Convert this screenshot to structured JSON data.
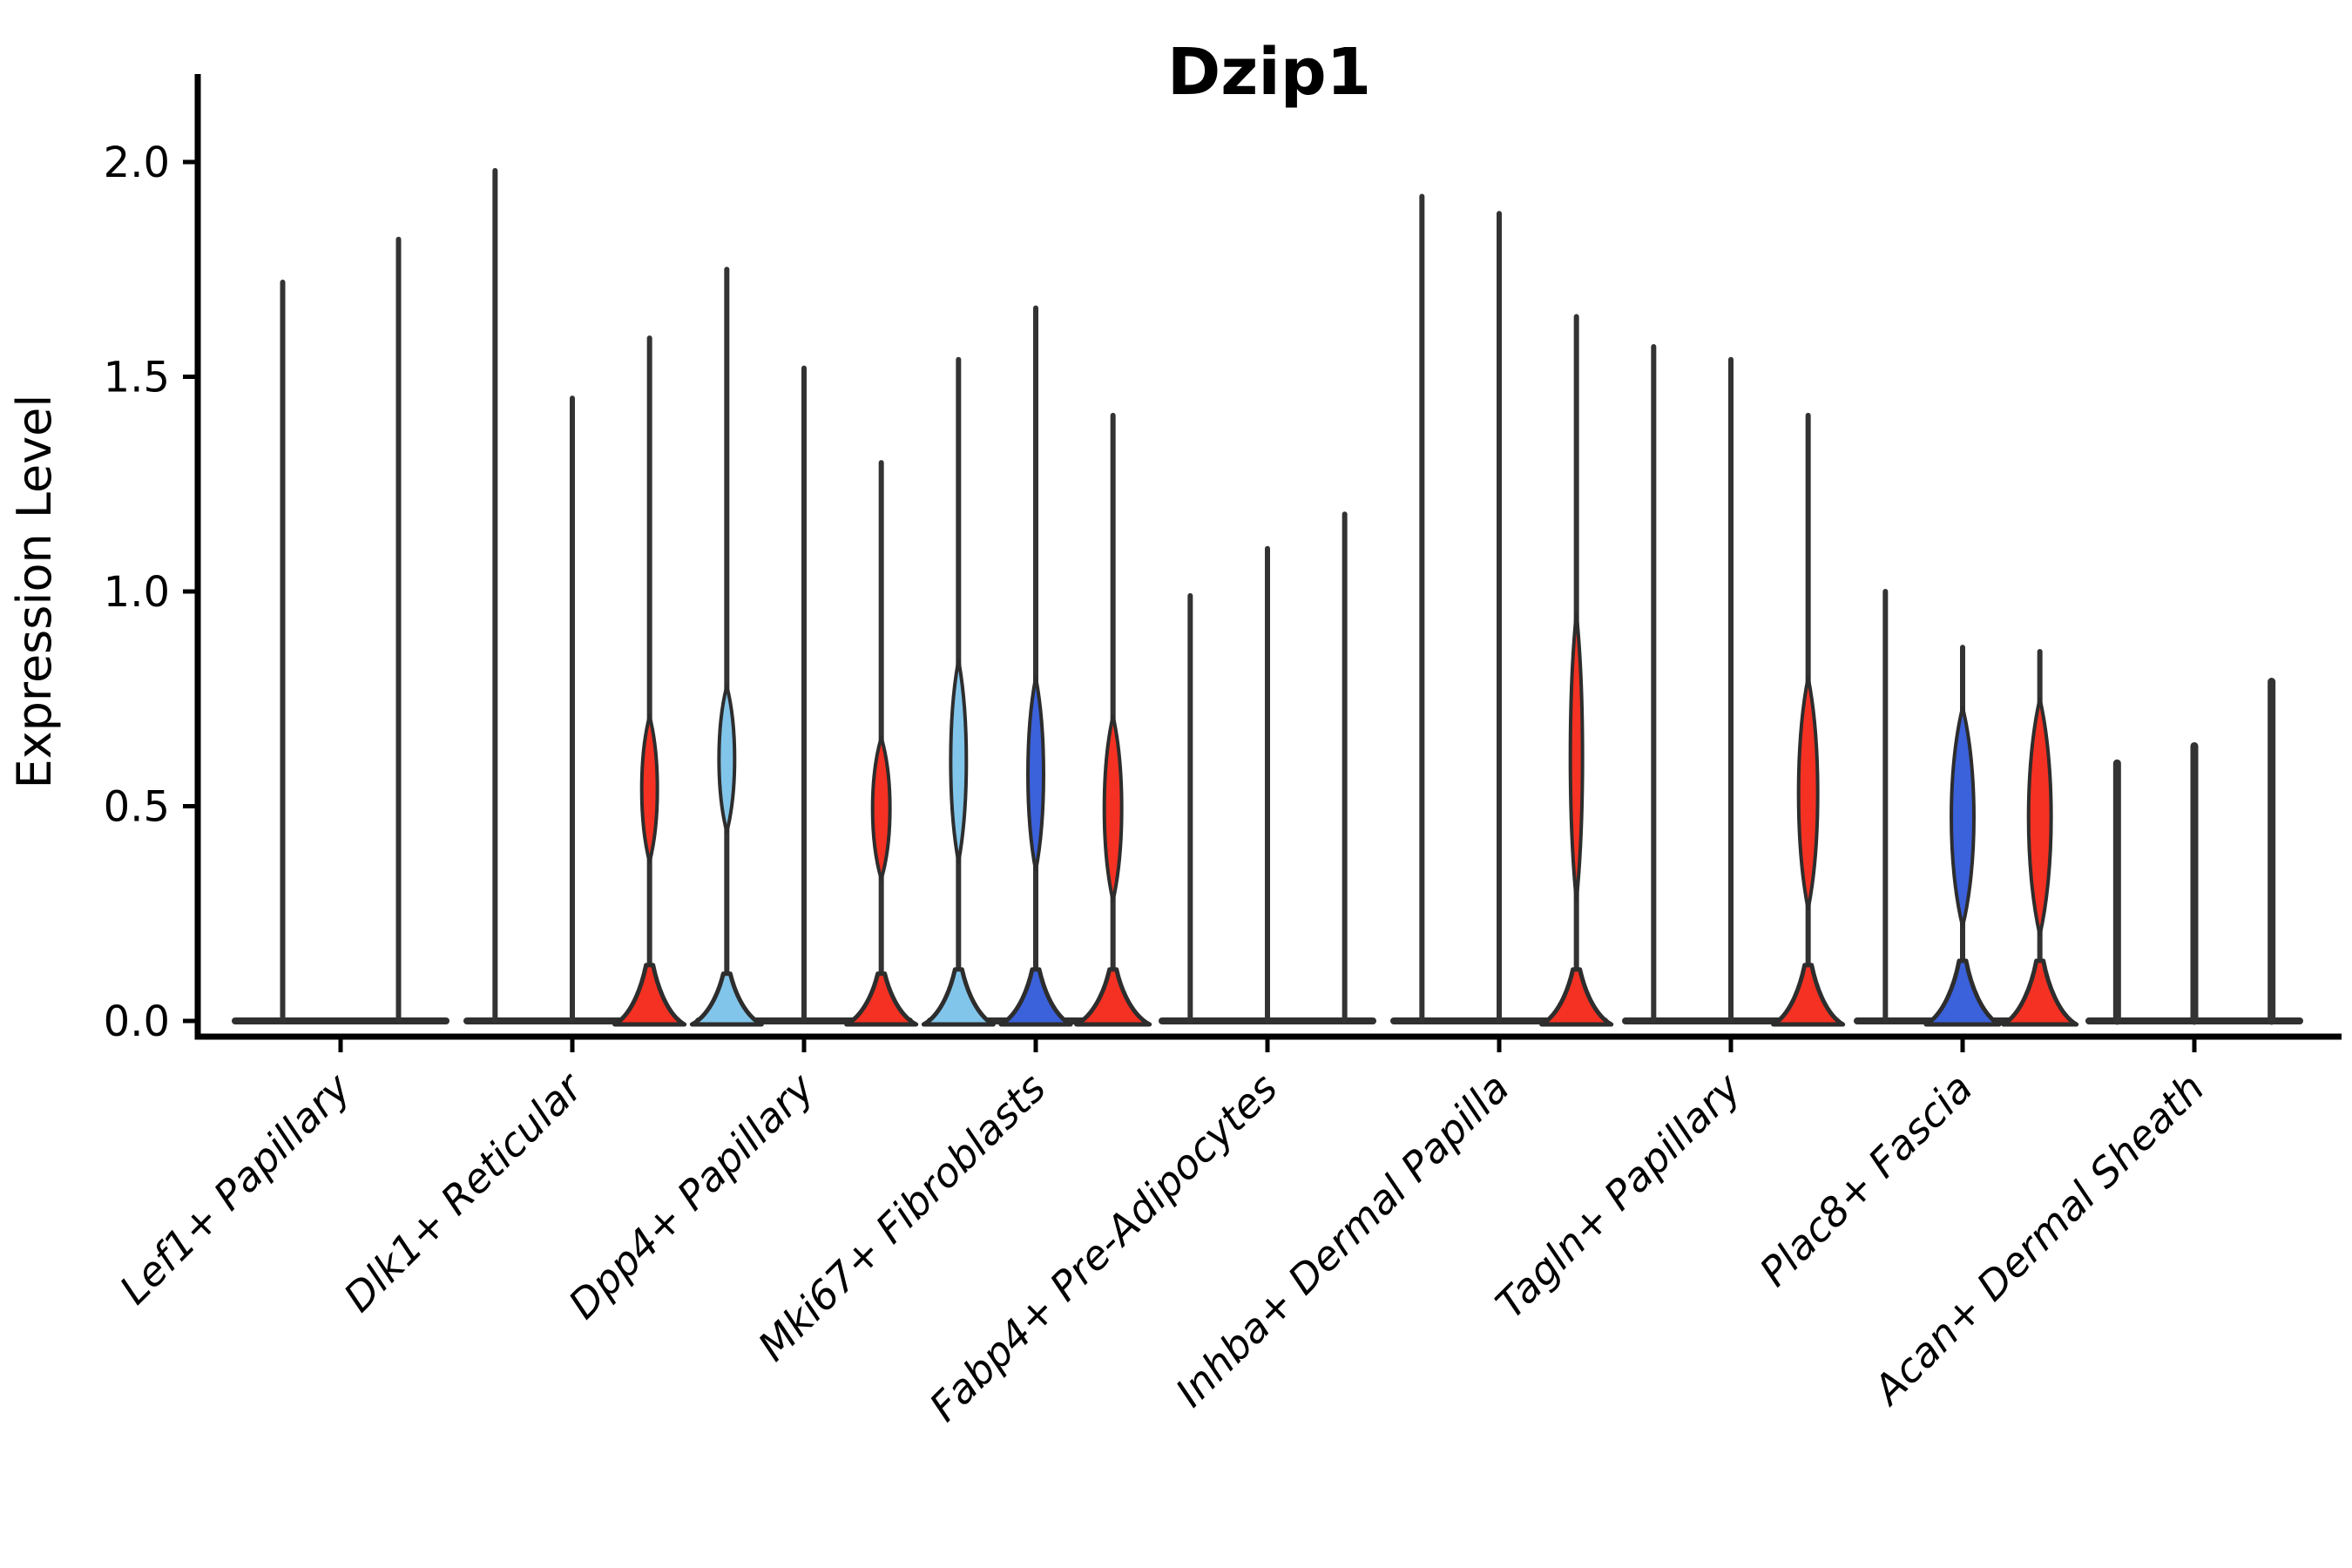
{
  "chart_data": {
    "type": "violin",
    "title": "Dzip1",
    "ylabel": "Expression Level",
    "xlabel": "",
    "ylim": [
      0,
      2.05
    ],
    "yticks": [
      {
        "value": 0.0,
        "label": "0.0"
      },
      {
        "value": 0.5,
        "label": "0.5"
      },
      {
        "value": 1.0,
        "label": "1.0"
      },
      {
        "value": 1.5,
        "label": "1.5"
      },
      {
        "value": 2.0,
        "label": "2.0"
      }
    ],
    "grid": false,
    "legend": false,
    "categories": [
      "Lef1+ Papillary",
      "Dlk1+ Reticular",
      "Dpp4+ Papillary",
      "Mki67+ Fibroblasts",
      "Fabp4+ Pre-Adipocytes",
      "Inhba+ Dermal Papilla",
      "Tagln+ Papillary",
      "Plac8+ Fascia",
      "Acan+ Dermal Sheath"
    ],
    "groups": [
      {
        "category": "Lef1+ Papillary",
        "violins": [
          {
            "max": 1.72,
            "fill": "none"
          },
          {
            "max": 1.82,
            "fill": "none"
          }
        ]
      },
      {
        "category": "Dlk1+ Reticular",
        "violins": [
          {
            "max": 1.98,
            "fill": "none"
          },
          {
            "max": 1.45,
            "fill": "none"
          },
          {
            "max": 1.59,
            "fill": "red",
            "bulge": {
              "lo": 0.37,
              "hi": 0.71,
              "halfwidth": 9
            },
            "bump": {
              "height": 0.13,
              "halfwidth": 40
            }
          }
        ]
      },
      {
        "category": "Dpp4+ Papillary",
        "violins": [
          {
            "max": 1.75,
            "fill": "lightblue",
            "bulge": {
              "lo": 0.44,
              "hi": 0.78,
              "halfwidth": 9
            },
            "bump": {
              "height": 0.11,
              "halfwidth": 40
            }
          },
          {
            "max": 1.52,
            "fill": "none"
          },
          {
            "max": 1.3,
            "fill": "red",
            "bulge": {
              "lo": 0.33,
              "hi": 0.66,
              "halfwidth": 10
            },
            "bump": {
              "height": 0.11,
              "halfwidth": 40
            }
          }
        ]
      },
      {
        "category": "Mki67+ Fibroblasts",
        "violins": [
          {
            "max": 1.54,
            "fill": "lightblue",
            "bulge": {
              "lo": 0.37,
              "hi": 0.84,
              "halfwidth": 9
            },
            "bump": {
              "height": 0.12,
              "halfwidth": 40
            }
          },
          {
            "max": 1.66,
            "fill": "blue",
            "bulge": {
              "lo": 0.35,
              "hi": 0.8,
              "halfwidth": 9
            },
            "bump": {
              "height": 0.12,
              "halfwidth": 40
            }
          },
          {
            "max": 1.41,
            "fill": "red",
            "bulge": {
              "lo": 0.28,
              "hi": 0.71,
              "halfwidth": 10
            },
            "bump": {
              "height": 0.12,
              "halfwidth": 42
            }
          }
        ]
      },
      {
        "category": "Fabp4+ Pre-Adipocytes",
        "violins": [
          {
            "max": 0.99,
            "fill": "none"
          },
          {
            "max": 1.1,
            "fill": "none"
          },
          {
            "max": 1.18,
            "fill": "none"
          }
        ]
      },
      {
        "category": "Inhba+ Dermal Papilla",
        "violins": [
          {
            "max": 1.92,
            "fill": "none"
          },
          {
            "max": 1.88,
            "fill": "none"
          },
          {
            "max": 1.64,
            "fill": "red",
            "bulge": {
              "lo": 0.28,
              "hi": 0.95,
              "halfwidth": 7
            },
            "bump": {
              "height": 0.12,
              "halfwidth": 40
            }
          }
        ]
      },
      {
        "category": "Tagln+ Papillary",
        "violins": [
          {
            "max": 1.57,
            "fill": "none"
          },
          {
            "max": 1.54,
            "fill": "none"
          },
          {
            "max": 1.41,
            "fill": "red",
            "bulge": {
              "lo": 0.26,
              "hi": 0.8,
              "halfwidth": 11
            },
            "bump": {
              "height": 0.13,
              "halfwidth": 40
            }
          }
        ]
      },
      {
        "category": "Plac8+ Fascia",
        "violins": [
          {
            "max": 1.0,
            "fill": "none"
          },
          {
            "max": 0.87,
            "fill": "blue",
            "bulge": {
              "lo": 0.22,
              "hi": 0.73,
              "halfwidth": 13
            },
            "bump": {
              "height": 0.14,
              "halfwidth": 42
            }
          },
          {
            "max": 0.86,
            "fill": "red",
            "bulge": {
              "lo": 0.2,
              "hi": 0.75,
              "halfwidth": 13
            },
            "bump": {
              "height": 0.14,
              "halfwidth": 42
            }
          }
        ]
      },
      {
        "category": "Acan+ Dermal Sheath",
        "violins": [
          {
            "max": 0.6,
            "fill": "none",
            "thick": true
          },
          {
            "max": 0.64,
            "fill": "none",
            "thick": true
          },
          {
            "max": 0.79,
            "fill": "none",
            "thick": true
          }
        ]
      }
    ],
    "colors": {
      "red": "#F43122",
      "blue": "#3B61DB",
      "lightblue": "#82C5EA",
      "outline": "#2D2D2D",
      "spike": "#333333",
      "ribbon": "#303030",
      "axis": "#000000"
    }
  }
}
